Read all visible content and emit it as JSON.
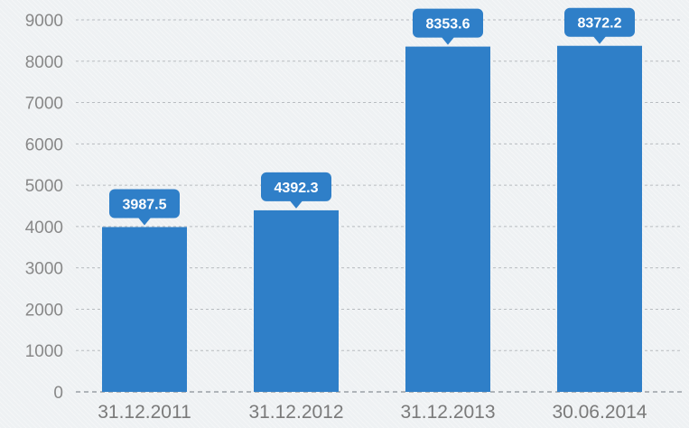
{
  "chart_data": {
    "type": "bar",
    "categories": [
      "31.12.2011",
      "31.12.2012",
      "31.12.2013",
      "30.06.2014"
    ],
    "values": [
      3987.5,
      4392.3,
      8353.6,
      8372.2
    ],
    "value_labels": [
      "3987.5",
      "4392.3",
      "8353.6",
      "8372.2"
    ],
    "title": "",
    "xlabel": "",
    "ylabel": "",
    "ylim": [
      0,
      9000
    ],
    "yticks": [
      0,
      1000,
      2000,
      3000,
      4000,
      5000,
      6000,
      7000,
      8000,
      9000
    ],
    "grid": true,
    "legend": "none",
    "colors": {
      "bar": "#2f7fc8",
      "label_bg": "#2f7fc8",
      "grid": "#b8bcc0"
    }
  }
}
